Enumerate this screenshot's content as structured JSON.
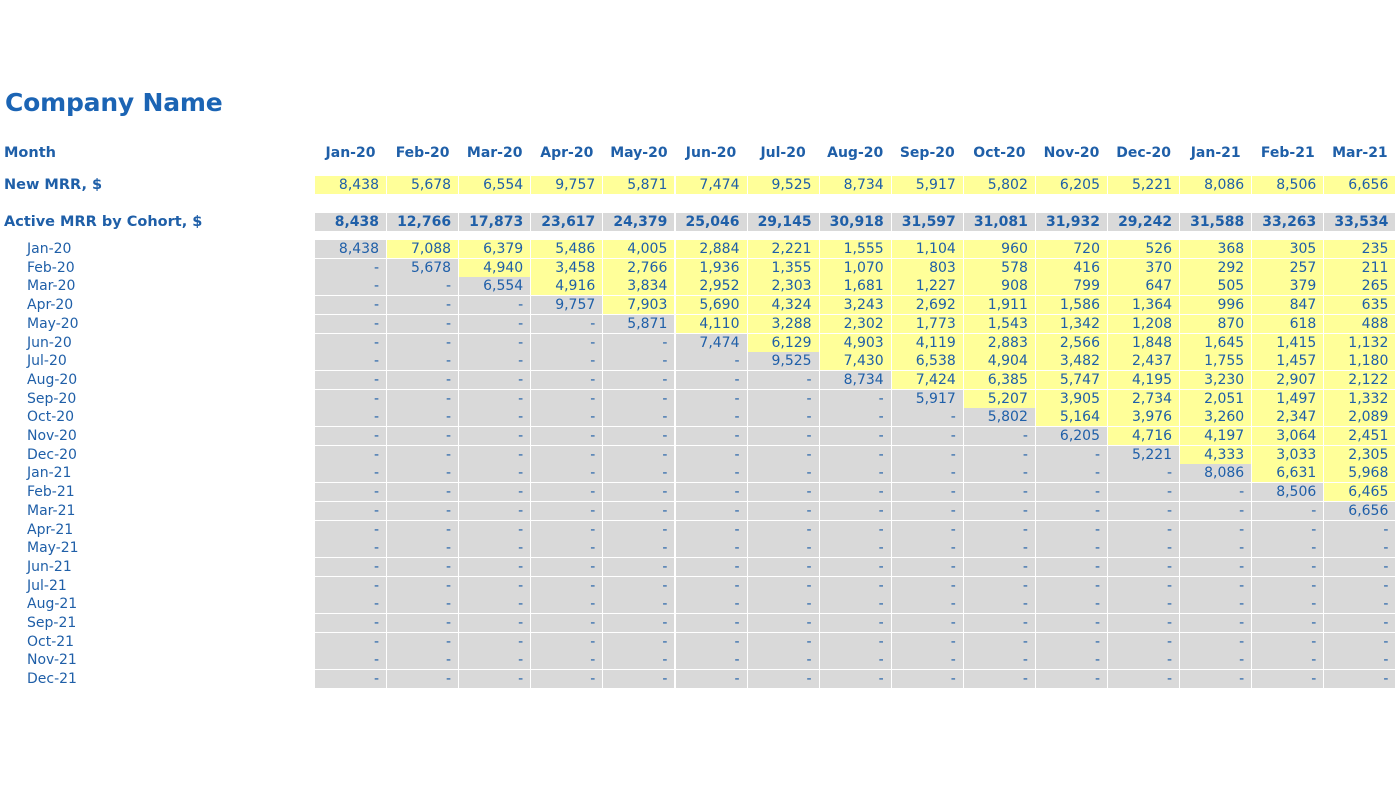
{
  "title": "Company Name",
  "labels": {
    "month": "Month",
    "new_mrr": "New MRR, $",
    "active_mrr": "Active MRR by Cohort, $"
  },
  "months": [
    "Jan-20",
    "Feb-20",
    "Mar-20",
    "Apr-20",
    "May-20",
    "Jun-20",
    "Jul-20",
    "Aug-20",
    "Sep-20",
    "Oct-20",
    "Nov-20",
    "Dec-20",
    "Jan-21",
    "Feb-21",
    "Mar-21"
  ],
  "new_mrr": [
    "8,438",
    "5,678",
    "6,554",
    "9,757",
    "5,871",
    "7,474",
    "9,525",
    "8,734",
    "5,917",
    "5,802",
    "6,205",
    "5,221",
    "8,086",
    "8,506",
    "6,656"
  ],
  "active_mrr": [
    "8,438",
    "12,766",
    "17,873",
    "23,617",
    "24,379",
    "25,046",
    "29,145",
    "30,918",
    "31,597",
    "31,081",
    "31,932",
    "29,242",
    "31,588",
    "33,263",
    "33,534"
  ],
  "colors": {
    "yellow": "#ffff99",
    "gray": "#d9d9d9",
    "text": "#1f5fa8"
  },
  "cohorts": [
    {
      "label": "Jan-20",
      "values": [
        "8,438",
        "7,088",
        "6,379",
        "5,486",
        "4,005",
        "2,884",
        "2,221",
        "1,555",
        "1,104",
        "960",
        "720",
        "526",
        "368",
        "305",
        "235"
      ]
    },
    {
      "label": "Feb-20",
      "values": [
        "-",
        "5,678",
        "4,940",
        "3,458",
        "2,766",
        "1,936",
        "1,355",
        "1,070",
        "803",
        "578",
        "416",
        "370",
        "292",
        "257",
        "211"
      ]
    },
    {
      "label": "Mar-20",
      "values": [
        "-",
        "-",
        "6,554",
        "4,916",
        "3,834",
        "2,952",
        "2,303",
        "1,681",
        "1,227",
        "908",
        "799",
        "647",
        "505",
        "379",
        "265"
      ]
    },
    {
      "label": "Apr-20",
      "values": [
        "-",
        "-",
        "-",
        "9,757",
        "7,903",
        "5,690",
        "4,324",
        "3,243",
        "2,692",
        "1,911",
        "1,586",
        "1,364",
        "996",
        "847",
        "635"
      ]
    },
    {
      "label": "May-20",
      "values": [
        "-",
        "-",
        "-",
        "-",
        "5,871",
        "4,110",
        "3,288",
        "2,302",
        "1,773",
        "1,543",
        "1,342",
        "1,208",
        "870",
        "618",
        "488"
      ]
    },
    {
      "label": "Jun-20",
      "values": [
        "-",
        "-",
        "-",
        "-",
        "-",
        "7,474",
        "6,129",
        "4,903",
        "4,119",
        "2,883",
        "2,566",
        "1,848",
        "1,645",
        "1,415",
        "1,132"
      ]
    },
    {
      "label": "Jul-20",
      "values": [
        "-",
        "-",
        "-",
        "-",
        "-",
        "-",
        "9,525",
        "7,430",
        "6,538",
        "4,904",
        "3,482",
        "2,437",
        "1,755",
        "1,457",
        "1,180"
      ]
    },
    {
      "label": "Aug-20",
      "values": [
        "-",
        "-",
        "-",
        "-",
        "-",
        "-",
        "-",
        "8,734",
        "7,424",
        "6,385",
        "5,747",
        "4,195",
        "3,230",
        "2,907",
        "2,122"
      ]
    },
    {
      "label": "Sep-20",
      "values": [
        "-",
        "-",
        "-",
        "-",
        "-",
        "-",
        "-",
        "-",
        "5,917",
        "5,207",
        "3,905",
        "2,734",
        "2,051",
        "1,497",
        "1,332"
      ]
    },
    {
      "label": "Oct-20",
      "values": [
        "-",
        "-",
        "-",
        "-",
        "-",
        "-",
        "-",
        "-",
        "-",
        "5,802",
        "5,164",
        "3,976",
        "3,260",
        "2,347",
        "2,089"
      ]
    },
    {
      "label": "Nov-20",
      "values": [
        "-",
        "-",
        "-",
        "-",
        "-",
        "-",
        "-",
        "-",
        "-",
        "-",
        "6,205",
        "4,716",
        "4,197",
        "3,064",
        "2,451"
      ]
    },
    {
      "label": "Dec-20",
      "values": [
        "-",
        "-",
        "-",
        "-",
        "-",
        "-",
        "-",
        "-",
        "-",
        "-",
        "-",
        "5,221",
        "4,333",
        "3,033",
        "2,305"
      ]
    },
    {
      "label": "Jan-21",
      "values": [
        "-",
        "-",
        "-",
        "-",
        "-",
        "-",
        "-",
        "-",
        "-",
        "-",
        "-",
        "-",
        "8,086",
        "6,631",
        "5,968"
      ]
    },
    {
      "label": "Feb-21",
      "values": [
        "-",
        "-",
        "-",
        "-",
        "-",
        "-",
        "-",
        "-",
        "-",
        "-",
        "-",
        "-",
        "-",
        "8,506",
        "6,465"
      ]
    },
    {
      "label": "Mar-21",
      "values": [
        "-",
        "-",
        "-",
        "-",
        "-",
        "-",
        "-",
        "-",
        "-",
        "-",
        "-",
        "-",
        "-",
        "-",
        "6,656"
      ]
    },
    {
      "label": "Apr-21",
      "values": [
        "-",
        "-",
        "-",
        "-",
        "-",
        "-",
        "-",
        "-",
        "-",
        "-",
        "-",
        "-",
        "-",
        "-",
        "-"
      ]
    },
    {
      "label": "May-21",
      "values": [
        "-",
        "-",
        "-",
        "-",
        "-",
        "-",
        "-",
        "-",
        "-",
        "-",
        "-",
        "-",
        "-",
        "-",
        "-"
      ]
    },
    {
      "label": "Jun-21",
      "values": [
        "-",
        "-",
        "-",
        "-",
        "-",
        "-",
        "-",
        "-",
        "-",
        "-",
        "-",
        "-",
        "-",
        "-",
        "-"
      ]
    },
    {
      "label": "Jul-21",
      "values": [
        "-",
        "-",
        "-",
        "-",
        "-",
        "-",
        "-",
        "-",
        "-",
        "-",
        "-",
        "-",
        "-",
        "-",
        "-"
      ]
    },
    {
      "label": "Aug-21",
      "values": [
        "-",
        "-",
        "-",
        "-",
        "-",
        "-",
        "-",
        "-",
        "-",
        "-",
        "-",
        "-",
        "-",
        "-",
        "-"
      ]
    },
    {
      "label": "Sep-21",
      "values": [
        "-",
        "-",
        "-",
        "-",
        "-",
        "-",
        "-",
        "-",
        "-",
        "-",
        "-",
        "-",
        "-",
        "-",
        "-"
      ]
    },
    {
      "label": "Oct-21",
      "values": [
        "-",
        "-",
        "-",
        "-",
        "-",
        "-",
        "-",
        "-",
        "-",
        "-",
        "-",
        "-",
        "-",
        "-",
        "-"
      ]
    },
    {
      "label": "Nov-21",
      "values": [
        "-",
        "-",
        "-",
        "-",
        "-",
        "-",
        "-",
        "-",
        "-",
        "-",
        "-",
        "-",
        "-",
        "-",
        "-"
      ]
    },
    {
      "label": "Dec-21",
      "values": [
        "-",
        "-",
        "-",
        "-",
        "-",
        "-",
        "-",
        "-",
        "-",
        "-",
        "-",
        "-",
        "-",
        "-",
        "-"
      ]
    }
  ]
}
